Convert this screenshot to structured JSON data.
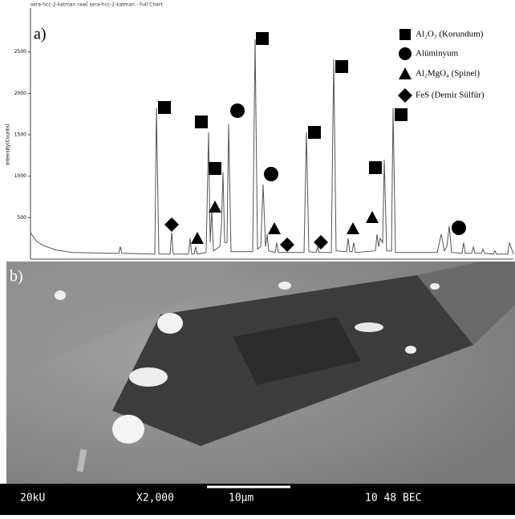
{
  "figure": {
    "header": "sera-hcc-2-katman.raw[ sera-hcc-2-katman - Full Chart",
    "panel_a": "a)",
    "panel_b": "b)"
  },
  "chart_data": {
    "type": "line",
    "ylabel": "Intensity(Counts)",
    "color": "#555555",
    "xlim": [
      0,
      602
    ],
    "ylim": [
      0,
      3000
    ],
    "yticks": [
      500,
      1000,
      1500,
      2000,
      2500
    ],
    "legend": [
      "Al₂O₃ (Korundum)",
      "Alüminyum",
      "Al₂MgO₄ (Spinel)",
      "FeS (Demir Sülfür)"
    ],
    "x": [
      0,
      7,
      17,
      32,
      52,
      102,
      110,
      112,
      114,
      152,
      155,
      157,
      160,
      174,
      176,
      178,
      197,
      199,
      201,
      204,
      206,
      208,
      219,
      222,
      224,
      226,
      228,
      236,
      238,
      240,
      242,
      245,
      247,
      250,
      277,
      280,
      283,
      287,
      290,
      293,
      295,
      297,
      305,
      307,
      309,
      341,
      344,
      347,
      356,
      358,
      360,
      375,
      378,
      381,
      394,
      396,
      398,
      401,
      403,
      405,
      430,
      432,
      434,
      436,
      439,
      441,
      444,
      450,
      452,
      455,
      507,
      512,
      516,
      519,
      522,
      525,
      538,
      540,
      542,
      550,
      552,
      554,
      562,
      564,
      566,
      577,
      579,
      581,
      595,
      597,
      602
    ],
    "values": [
      320,
      220,
      160,
      110,
      80,
      70,
      70,
      150,
      70,
      60,
      60,
      1825,
      60,
      60,
      320,
      60,
      60,
      250,
      60,
      60,
      150,
      60,
      80,
      1530,
      200,
      600,
      100,
      150,
      400,
      1050,
      200,
      200,
      1630,
      90,
      90,
      2650,
      120,
      150,
      900,
      150,
      300,
      100,
      80,
      200,
      80,
      80,
      1530,
      90,
      80,
      150,
      80,
      80,
      2410,
      100,
      90,
      250,
      90,
      90,
      200,
      80,
      100,
      300,
      150,
      250,
      200,
      1200,
      100,
      100,
      1825,
      80,
      80,
      300,
      100,
      150,
      400,
      80,
      70,
      200,
      70,
      70,
      150,
      70,
      70,
      120,
      70,
      60,
      100,
      60,
      60,
      200,
      60
    ]
  },
  "sem": {
    "voltage": "20kU",
    "magnification": "X2,000",
    "scale": "10μm",
    "info": "10 48 BEC"
  }
}
